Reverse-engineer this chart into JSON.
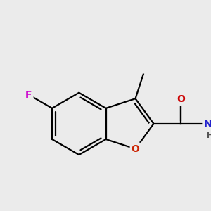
{
  "background_color": "#ebebeb",
  "bond_color": "#000000",
  "atom_colors": {
    "F": "#cc00cc",
    "O_ring": "#cc2200",
    "O_carbonyl": "#cc0000",
    "N": "#2222cc",
    "H": "#555555",
    "C": "#000000"
  },
  "figsize": [
    3.0,
    3.0
  ],
  "dpi": 100
}
